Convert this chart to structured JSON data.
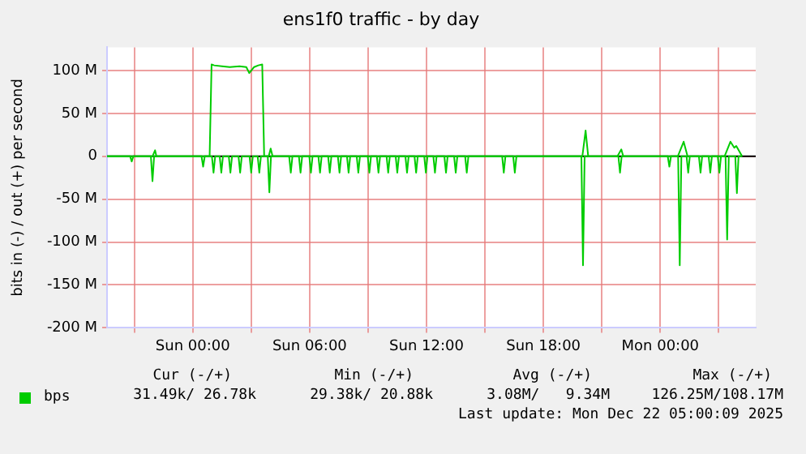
{
  "chart_data": {
    "type": "line",
    "title": "ens1f0 traffic - by day",
    "ylabel": "bits in (-) / out (+) per second",
    "marker": "none",
    "grid": true,
    "legend": "bottom left",
    "xlim": [
      "2025-12-20T19:36",
      "2025-12-22T04:54"
    ],
    "ylim": [
      -200,
      127
    ],
    "xticks": [
      {
        "value": "2025-12-20T21:00",
        "label": null
      },
      {
        "value": "2025-12-21T00:00",
        "label": "Sun 00:00"
      },
      {
        "value": "2025-12-21T03:00",
        "label": null
      },
      {
        "value": "2025-12-21T06:00",
        "label": "Sun 06:00"
      },
      {
        "value": "2025-12-21T09:00",
        "label": null
      },
      {
        "value": "2025-12-21T12:00",
        "label": "Sun 12:00"
      },
      {
        "value": "2025-12-21T15:00",
        "label": null
      },
      {
        "value": "2025-12-21T18:00",
        "label": "Sun 18:00"
      },
      {
        "value": "2025-12-21T21:00",
        "label": null
      },
      {
        "value": "2025-12-22T00:00",
        "label": "Mon 00:00"
      },
      {
        "value": "2025-12-22T03:00",
        "label": null
      }
    ],
    "yticks": [
      {
        "value": -200,
        "label": "-200 M"
      },
      {
        "value": -150,
        "label": "-150 M"
      },
      {
        "value": -100,
        "label": "-100 M"
      },
      {
        "value": -50,
        "label": "-50 M"
      },
      0,
      {
        "value": 50,
        "label": "50 M"
      },
      {
        "value": 100,
        "label": "100 M"
      }
    ],
    "ref_lines": [
      {
        "axis": "y",
        "value": 0,
        "color": "#000000"
      }
    ],
    "series": [
      {
        "name": "bps",
        "color": "#00cc00",
        "x": [
          "2025-12-20T19:36",
          "2025-12-20T21:56",
          "2025-12-20T22:04",
          "2025-12-20T22:08",
          "2025-12-21T00:52",
          "2025-12-21T00:58",
          "2025-12-21T01:06",
          "2025-12-21T01:30",
          "2025-12-21T01:54",
          "2025-12-21T02:24",
          "2025-12-21T02:45",
          "2025-12-21T02:54",
          "2025-12-21T03:09",
          "2025-12-21T03:22",
          "2025-12-21T03:34",
          "2025-12-21T03:40",
          "2025-12-21T03:54",
          "2025-12-21T04:00",
          "2025-12-21T04:06",
          "2025-12-21T20:00",
          "2025-12-21T20:10",
          "2025-12-21T20:18",
          "2025-12-21T21:48",
          "2025-12-21T22:00",
          "2025-12-21T22:06",
          "2025-12-22T00:54",
          "2025-12-22T01:12",
          "2025-12-22T01:24",
          "2025-12-22T03:18",
          "2025-12-22T03:36",
          "2025-12-22T03:48",
          "2025-12-22T03:54",
          "2025-12-22T04:12"
        ],
        "values": [
          0,
          0,
          7,
          0,
          0,
          107,
          106,
          105,
          104,
          105,
          104,
          97,
          104,
          106,
          107,
          0,
          0,
          9,
          0,
          0,
          30,
          0,
          0,
          8,
          0,
          0,
          17,
          0,
          0,
          17,
          10,
          12,
          0
        ]
      },
      {
        "color": "#00cc00",
        "x": [
          "2025-12-20T19:36",
          "2025-12-20T20:47",
          "2025-12-20T20:52",
          "2025-12-20T20:57",
          "2025-12-20T21:51",
          "2025-12-20T21:56",
          "2025-12-20T22:01",
          "2025-12-21T00:27",
          "2025-12-21T00:32",
          "2025-12-21T00:37",
          "2025-12-21T00:59",
          "2025-12-21T01:04",
          "2025-12-21T01:09",
          "2025-12-21T01:23",
          "2025-12-21T01:28",
          "2025-12-21T01:33",
          "2025-12-21T01:51",
          "2025-12-21T01:56",
          "2025-12-21T02:01",
          "2025-12-21T02:21",
          "2025-12-21T02:26",
          "2025-12-21T02:31",
          "2025-12-21T02:55",
          "2025-12-21T03:00",
          "2025-12-21T03:05",
          "2025-12-21T03:20",
          "2025-12-21T03:25",
          "2025-12-21T03:30",
          "2025-12-21T03:51",
          "2025-12-21T03:56",
          "2025-12-21T04:01",
          "2025-12-21T04:57",
          "2025-12-21T05:02",
          "2025-12-21T05:07",
          "2025-12-21T05:27",
          "2025-12-21T05:32",
          "2025-12-21T05:37",
          "2025-12-21T05:59",
          "2025-12-21T06:04",
          "2025-12-21T06:09",
          "2025-12-21T06:27",
          "2025-12-21T06:32",
          "2025-12-21T06:37",
          "2025-12-21T06:57",
          "2025-12-21T07:02",
          "2025-12-21T07:07",
          "2025-12-21T07:27",
          "2025-12-21T07:32",
          "2025-12-21T07:37",
          "2025-12-21T07:55",
          "2025-12-21T08:00",
          "2025-12-21T08:05",
          "2025-12-21T08:25",
          "2025-12-21T08:30",
          "2025-12-21T08:35",
          "2025-12-21T08:59",
          "2025-12-21T09:04",
          "2025-12-21T09:09",
          "2025-12-21T09:27",
          "2025-12-21T09:32",
          "2025-12-21T09:37",
          "2025-12-21T09:57",
          "2025-12-21T10:02",
          "2025-12-21T10:07",
          "2025-12-21T10:25",
          "2025-12-21T10:30",
          "2025-12-21T10:35",
          "2025-12-21T10:55",
          "2025-12-21T11:00",
          "2025-12-21T11:05",
          "2025-12-21T11:23",
          "2025-12-21T11:28",
          "2025-12-21T11:33",
          "2025-12-21T11:53",
          "2025-12-21T11:58",
          "2025-12-21T12:03",
          "2025-12-21T12:21",
          "2025-12-21T12:26",
          "2025-12-21T12:31",
          "2025-12-21T12:55",
          "2025-12-21T13:00",
          "2025-12-21T13:05",
          "2025-12-21T13:25",
          "2025-12-21T13:30",
          "2025-12-21T13:35",
          "2025-12-21T13:59",
          "2025-12-21T14:04",
          "2025-12-21T14:09",
          "2025-12-21T15:53",
          "2025-12-21T15:58",
          "2025-12-21T16:03",
          "2025-12-21T16:27",
          "2025-12-21T16:32",
          "2025-12-21T16:37",
          "2025-12-21T19:57",
          "2025-12-21T20:02",
          "2025-12-21T20:07",
          "2025-12-21T21:51",
          "2025-12-21T21:56",
          "2025-12-21T22:01",
          "2025-12-22T00:23",
          "2025-12-22T00:28",
          "2025-12-22T00:33",
          "2025-12-22T00:55",
          "2025-12-22T01:00",
          "2025-12-22T01:05",
          "2025-12-22T01:21",
          "2025-12-22T01:26",
          "2025-12-22T01:31",
          "2025-12-22T01:59",
          "2025-12-22T02:04",
          "2025-12-22T02:09",
          "2025-12-22T02:29",
          "2025-12-22T02:34",
          "2025-12-22T02:39",
          "2025-12-22T02:57",
          "2025-12-22T03:02",
          "2025-12-22T03:07",
          "2025-12-22T03:21",
          "2025-12-22T03:26",
          "2025-12-22T03:31",
          "2025-12-22T03:51",
          "2025-12-22T03:56",
          "2025-12-22T04:01",
          "2025-12-22T04:12"
        ],
        "values": [
          0,
          0,
          -6,
          0,
          0,
          -29,
          0,
          0,
          -12,
          0,
          0,
          -19,
          0,
          0,
          -19,
          0,
          0,
          -19,
          0,
          0,
          -19,
          0,
          0,
          -19,
          0,
          0,
          -19,
          0,
          0,
          -42,
          0,
          0,
          -19,
          0,
          0,
          -19,
          0,
          0,
          -19,
          0,
          0,
          -19,
          0,
          0,
          -19,
          0,
          0,
          -19,
          0,
          0,
          -19,
          0,
          0,
          -19,
          0,
          0,
          -19,
          0,
          0,
          -19,
          0,
          0,
          -19,
          0,
          0,
          -19,
          0,
          0,
          -19,
          0,
          0,
          -19,
          0,
          0,
          -19,
          0,
          0,
          -19,
          0,
          0,
          -19,
          0,
          0,
          -19,
          0,
          0,
          -19,
          0,
          0,
          -19,
          0,
          0,
          -19,
          0,
          0,
          -127,
          0,
          0,
          -19,
          0,
          0,
          -12,
          0,
          0,
          -127,
          0,
          0,
          -19,
          0,
          0,
          -19,
          0,
          0,
          -19,
          0,
          0,
          -19,
          0,
          0,
          -97,
          0,
          0,
          -43,
          0,
          0
        ]
      }
    ],
    "annotations": [
      "Cur (-/+)",
      "Min (-/+)",
      "Avg (-/+)",
      "Max (-/+)",
      "31.49k/ 26.78k",
      "29.38k/ 20.88k",
      "3.08M/   9.34M",
      "126.25M/108.17M",
      "Last update: Mon Dec 22 05:00:09 2025"
    ]
  }
}
